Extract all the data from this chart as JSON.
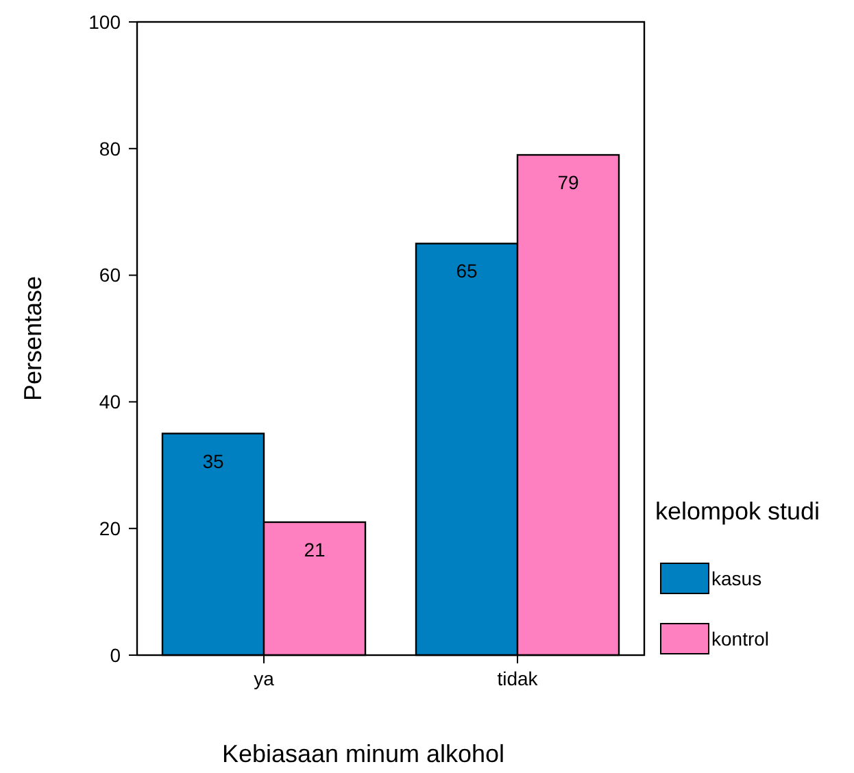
{
  "chart_data": {
    "type": "bar",
    "xlabel": "Kebiasaan minum alkohol",
    "ylabel": "Persentase",
    "legend_title": "kelompok studi",
    "categories": [
      "ya",
      "tidak"
    ],
    "series": [
      {
        "name": "kasus",
        "color": "#0080c0",
        "values": [
          35,
          65
        ]
      },
      {
        "name": "kontrol",
        "color": "#ff80c0",
        "values": [
          21,
          79
        ]
      }
    ],
    "ylim": [
      0,
      100
    ],
    "yticks": [
      0,
      20,
      40,
      60,
      80,
      100
    ],
    "data_labels": true,
    "legend": "right",
    "grid": false
  }
}
